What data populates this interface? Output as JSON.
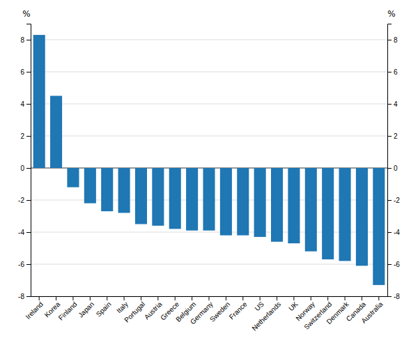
{
  "chart_data": {
    "type": "bar",
    "categories": [
      "Ireland",
      "Korea",
      "Finland",
      "Japan",
      "Spain",
      "Italy",
      "Portugal",
      "Austria",
      "Greece",
      "Belgium",
      "Germany",
      "Sweden",
      "France",
      "US",
      "Netherlands",
      "UK",
      "Norway",
      "Switzerland",
      "Denmark",
      "Canada",
      "Australia"
    ],
    "values": [
      8.3,
      4.5,
      -1.2,
      -2.2,
      -2.7,
      -2.8,
      -3.5,
      -3.6,
      -3.8,
      -3.9,
      -3.9,
      -4.2,
      -4.2,
      -4.3,
      -4.6,
      -4.7,
      -5.2,
      -5.7,
      -5.8,
      -6.1,
      -7.3
    ],
    "ylabel": "%",
    "y2label": "%",
    "ylim": [
      -8,
      9
    ],
    "yticks": [
      -8,
      -6,
      -4,
      -2,
      0,
      2,
      4,
      6,
      8
    ],
    "y2lim": [
      -8,
      9
    ],
    "y2ticks": [
      -8,
      -6,
      -4,
      -2,
      0,
      2,
      4,
      6,
      8
    ],
    "grid": true
  }
}
